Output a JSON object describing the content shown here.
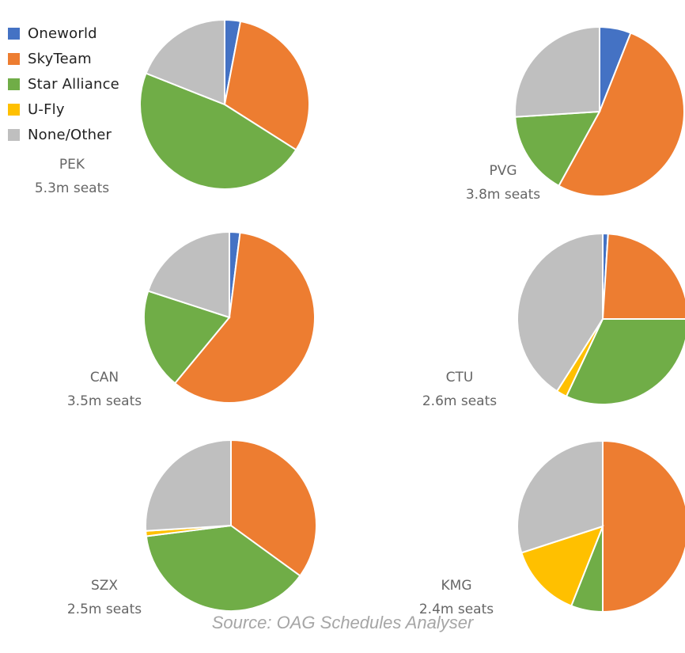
{
  "legend": [
    {
      "label": "Oneworld",
      "color": "#4472C4"
    },
    {
      "label": "SkyTeam",
      "color": "#ED7D31"
    },
    {
      "label": "Star Alliance",
      "color": "#70AD47"
    },
    {
      "label": "U-Fly",
      "color": "#FFC000"
    },
    {
      "label": "None/Other",
      "color": "#BFBFBF"
    }
  ],
  "source": "Source: OAG Schedules Analyser",
  "chart_data": [
    {
      "type": "pie",
      "airport": "PEK",
      "seats": "5.3m seats",
      "slices": [
        {
          "name": "Oneworld",
          "value": 3
        },
        {
          "name": "SkyTeam",
          "value": 31
        },
        {
          "name": "Star Alliance",
          "value": 47
        },
        {
          "name": "U-Fly",
          "value": 0
        },
        {
          "name": "None/Other",
          "value": 19
        }
      ]
    },
    {
      "type": "pie",
      "airport": "PVG",
      "seats": "3.8m seats",
      "slices": [
        {
          "name": "Oneworld",
          "value": 6
        },
        {
          "name": "SkyTeam",
          "value": 52
        },
        {
          "name": "Star Alliance",
          "value": 16
        },
        {
          "name": "U-Fly",
          "value": 0
        },
        {
          "name": "None/Other",
          "value": 26
        }
      ]
    },
    {
      "type": "pie",
      "airport": "CAN",
      "seats": "3.5m seats",
      "slices": [
        {
          "name": "Oneworld",
          "value": 2
        },
        {
          "name": "SkyTeam",
          "value": 59
        },
        {
          "name": "Star Alliance",
          "value": 19
        },
        {
          "name": "U-Fly",
          "value": 0
        },
        {
          "name": "None/Other",
          "value": 20
        }
      ]
    },
    {
      "type": "pie",
      "airport": "CTU",
      "seats": "2.6m seats",
      "slices": [
        {
          "name": "Oneworld",
          "value": 1
        },
        {
          "name": "SkyTeam",
          "value": 24
        },
        {
          "name": "Star Alliance",
          "value": 32
        },
        {
          "name": "U-Fly",
          "value": 2
        },
        {
          "name": "None/Other",
          "value": 41
        }
      ]
    },
    {
      "type": "pie",
      "airport": "SZX",
      "seats": "2.5m seats",
      "slices": [
        {
          "name": "Oneworld",
          "value": 0
        },
        {
          "name": "SkyTeam",
          "value": 35
        },
        {
          "name": "Star Alliance",
          "value": 38
        },
        {
          "name": "U-Fly",
          "value": 1
        },
        {
          "name": "None/Other",
          "value": 26
        }
      ]
    },
    {
      "type": "pie",
      "airport": "KMG",
      "seats": "2.4m seats",
      "slices": [
        {
          "name": "Oneworld",
          "value": 0
        },
        {
          "name": "SkyTeam",
          "value": 50
        },
        {
          "name": "Star Alliance",
          "value": 6
        },
        {
          "name": "U-Fly",
          "value": 14
        },
        {
          "name": "None/Other",
          "value": 30
        }
      ]
    }
  ]
}
